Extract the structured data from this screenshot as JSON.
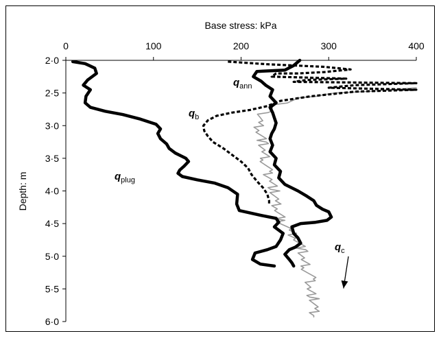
{
  "chart_data": {
    "type": "line",
    "xlabel": "Base stress: kPa",
    "ylabel": "Depth: m",
    "xlim": [
      0,
      400
    ],
    "ylim": [
      2.0,
      6.0
    ],
    "y_inverted": true,
    "x_axis_position": "top",
    "x_ticks": [
      "0",
      "100",
      "200",
      "300",
      "400"
    ],
    "y_ticks": [
      "2·0",
      "2·5",
      "3·0",
      "3·5",
      "4·0",
      "4·5",
      "5·0",
      "5·5",
      "6·0"
    ],
    "grid": false,
    "series": [
      {
        "name": "q_plug",
        "label_main": "q",
        "label_sub": "plug",
        "color": "#000000",
        "style": "thick-solid",
        "points": [
          [
            8,
            2.02
          ],
          [
            22,
            2.05
          ],
          [
            33,
            2.12
          ],
          [
            35,
            2.2
          ],
          [
            25,
            2.3
          ],
          [
            20,
            2.38
          ],
          [
            28,
            2.45
          ],
          [
            23,
            2.55
          ],
          [
            22,
            2.65
          ],
          [
            28,
            2.72
          ],
          [
            45,
            2.78
          ],
          [
            65,
            2.83
          ],
          [
            85,
            2.9
          ],
          [
            103,
            2.98
          ],
          [
            108,
            3.05
          ],
          [
            105,
            3.12
          ],
          [
            108,
            3.2
          ],
          [
            115,
            3.28
          ],
          [
            118,
            3.35
          ],
          [
            125,
            3.42
          ],
          [
            137,
            3.5
          ],
          [
            140,
            3.55
          ],
          [
            135,
            3.62
          ],
          [
            130,
            3.68
          ],
          [
            128,
            3.73
          ],
          [
            133,
            3.78
          ],
          [
            150,
            3.83
          ],
          [
            170,
            3.88
          ],
          [
            185,
            3.95
          ],
          [
            196,
            4.05
          ],
          [
            195,
            4.2
          ],
          [
            198,
            4.3
          ],
          [
            225,
            4.38
          ],
          [
            240,
            4.42
          ],
          [
            243,
            4.48
          ],
          [
            238,
            4.55
          ],
          [
            248,
            4.65
          ],
          [
            245,
            4.75
          ],
          [
            240,
            4.85
          ],
          [
            230,
            4.9
          ],
          [
            216,
            4.95
          ],
          [
            213,
            5.05
          ],
          [
            222,
            5.12
          ],
          [
            238,
            5.15
          ]
        ]
      },
      {
        "name": "q_ann",
        "label_main": "q",
        "label_sub": "ann",
        "color": "#000000",
        "style": "thick-solid",
        "points": [
          [
            267,
            2.0
          ],
          [
            260,
            2.08
          ],
          [
            250,
            2.15
          ],
          [
            218,
            2.17
          ],
          [
            214,
            2.25
          ],
          [
            223,
            2.32
          ],
          [
            228,
            2.38
          ],
          [
            236,
            2.45
          ],
          [
            233,
            2.55
          ],
          [
            240,
            2.65
          ],
          [
            233,
            2.72
          ],
          [
            236,
            2.8
          ],
          [
            238,
            2.88
          ],
          [
            240,
            2.96
          ],
          [
            238,
            3.05
          ],
          [
            235,
            3.12
          ],
          [
            233,
            3.2
          ],
          [
            236,
            3.3
          ],
          [
            233,
            3.4
          ],
          [
            240,
            3.5
          ],
          [
            238,
            3.6
          ],
          [
            245,
            3.7
          ],
          [
            243,
            3.8
          ],
          [
            250,
            3.9
          ],
          [
            265,
            4.0
          ],
          [
            275,
            4.08
          ],
          [
            283,
            4.15
          ],
          [
            286,
            4.22
          ],
          [
            293,
            4.28
          ],
          [
            300,
            4.32
          ],
          [
            303,
            4.4
          ],
          [
            298,
            4.45
          ],
          [
            285,
            4.48
          ],
          [
            268,
            4.5
          ],
          [
            258,
            4.55
          ],
          [
            260,
            4.65
          ],
          [
            265,
            4.72
          ],
          [
            268,
            4.8
          ],
          [
            262,
            4.86
          ],
          [
            255,
            4.9
          ],
          [
            250,
            4.97
          ],
          [
            255,
            5.05
          ],
          [
            258,
            5.1
          ],
          [
            260,
            5.15
          ]
        ]
      },
      {
        "name": "q_b",
        "label_main": "q",
        "label_sub": "b",
        "color": "#000000",
        "style": "dotted",
        "points": [
          [
            185,
            2.02
          ],
          [
            230,
            2.06
          ],
          [
            295,
            2.1
          ],
          [
            325,
            2.14
          ],
          [
            295,
            2.18
          ],
          [
            265,
            2.2
          ],
          [
            240,
            2.2
          ],
          [
            235,
            2.25
          ],
          [
            320,
            2.28
          ],
          [
            275,
            2.3
          ],
          [
            260,
            2.33
          ],
          [
            400,
            2.35
          ],
          [
            330,
            2.38
          ],
          [
            300,
            2.42
          ],
          [
            400,
            2.45
          ],
          [
            330,
            2.48
          ],
          [
            280,
            2.55
          ],
          [
            245,
            2.62
          ],
          [
            230,
            2.7
          ],
          [
            210,
            2.76
          ],
          [
            190,
            2.8
          ],
          [
            172,
            2.85
          ],
          [
            162,
            2.92
          ],
          [
            157,
            3.0
          ],
          [
            158,
            3.08
          ],
          [
            162,
            3.16
          ],
          [
            168,
            3.25
          ],
          [
            180,
            3.35
          ],
          [
            190,
            3.45
          ],
          [
            200,
            3.55
          ],
          [
            208,
            3.65
          ],
          [
            212,
            3.75
          ],
          [
            218,
            3.85
          ],
          [
            225,
            3.95
          ],
          [
            230,
            4.05
          ],
          [
            232,
            4.15
          ],
          [
            232,
            4.22
          ]
        ]
      },
      {
        "name": "q_c",
        "label_main": "q",
        "label_sub": "c",
        "color": "#999999",
        "style": "thin-solid",
        "noisy": true,
        "points": [
          [
            400,
            2.42
          ],
          [
            360,
            2.46
          ],
          [
            310,
            2.5
          ],
          [
            280,
            2.55
          ],
          [
            260,
            2.6
          ],
          [
            240,
            2.68
          ],
          [
            226,
            2.8
          ],
          [
            220,
            2.95
          ],
          [
            222,
            3.1
          ],
          [
            225,
            3.25
          ],
          [
            225,
            3.4
          ],
          [
            228,
            3.55
          ],
          [
            230,
            3.7
          ],
          [
            235,
            3.85
          ],
          [
            238,
            4.0
          ],
          [
            238,
            4.15
          ],
          [
            242,
            4.3
          ],
          [
            245,
            4.45
          ],
          [
            255,
            4.6
          ],
          [
            265,
            4.75
          ],
          [
            270,
            4.9
          ],
          [
            270,
            5.05
          ],
          [
            275,
            5.2
          ],
          [
            280,
            5.35
          ],
          [
            278,
            5.5
          ],
          [
            283,
            5.65
          ],
          [
            283,
            5.8
          ],
          [
            283,
            5.93
          ]
        ]
      }
    ],
    "annotations": [
      {
        "series": "q_c",
        "text_main": "q",
        "text_sub": "c",
        "arrow": true,
        "arrow_to": [
          295,
          5.45
        ]
      }
    ]
  }
}
